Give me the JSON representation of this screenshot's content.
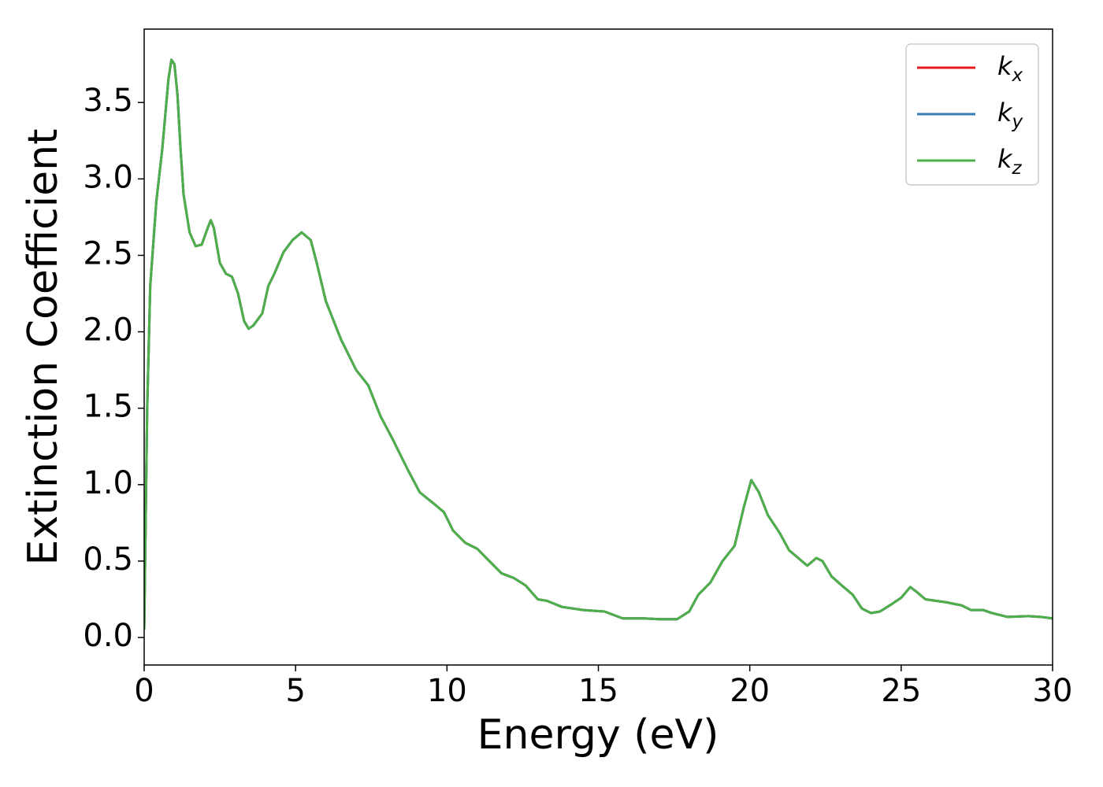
{
  "chart_data": {
    "type": "line",
    "xlabel": "Energy (eV)",
    "ylabel": "Extinction Coefficient",
    "x": [
      0,
      0.1,
      0.2,
      0.4,
      0.6,
      0.8,
      0.9,
      1.0,
      1.1,
      1.2,
      1.3,
      1.5,
      1.7,
      1.9,
      2.1,
      2.2,
      2.3,
      2.5,
      2.7,
      2.9,
      3.1,
      3.3,
      3.45,
      3.6,
      3.9,
      4.1,
      4.3,
      4.6,
      4.9,
      5.2,
      5.5,
      5.7,
      6.0,
      6.5,
      7.0,
      7.4,
      7.8,
      8.2,
      8.7,
      9.1,
      9.6,
      9.9,
      10.2,
      10.6,
      11.0,
      11.4,
      11.8,
      12.2,
      12.6,
      13.0,
      13.3,
      13.8,
      14.5,
      15.2,
      15.8,
      16.5,
      17.0,
      17.6,
      18.0,
      18.3,
      18.7,
      19.1,
      19.5,
      19.8,
      20.05,
      20.3,
      20.6,
      21.0,
      21.3,
      21.6,
      21.9,
      22.2,
      22.4,
      22.7,
      23.1,
      23.4,
      23.7,
      24.0,
      24.3,
      24.7,
      25.0,
      25.3,
      25.5,
      25.8,
      26.5,
      27.0,
      27.3,
      27.7,
      28.0,
      28.5,
      29.2,
      29.6,
      30.0
    ],
    "series": [
      {
        "name": "kx",
        "color": "#e41a1c",
        "values": [
          0.05,
          1.5,
          2.3,
          2.85,
          3.2,
          3.65,
          3.78,
          3.75,
          3.55,
          3.2,
          2.9,
          2.65,
          2.56,
          2.57,
          2.68,
          2.73,
          2.68,
          2.45,
          2.38,
          2.36,
          2.25,
          2.07,
          2.02,
          2.04,
          2.12,
          2.3,
          2.38,
          2.52,
          2.6,
          2.65,
          2.6,
          2.45,
          2.2,
          1.95,
          1.75,
          1.65,
          1.45,
          1.3,
          1.1,
          0.95,
          0.87,
          0.82,
          0.7,
          0.62,
          0.58,
          0.5,
          0.42,
          0.39,
          0.34,
          0.25,
          0.24,
          0.2,
          0.18,
          0.17,
          0.125,
          0.125,
          0.12,
          0.12,
          0.17,
          0.28,
          0.36,
          0.5,
          0.6,
          0.85,
          1.03,
          0.95,
          0.8,
          0.68,
          0.57,
          0.52,
          0.47,
          0.52,
          0.5,
          0.4,
          0.33,
          0.28,
          0.19,
          0.16,
          0.17,
          0.22,
          0.26,
          0.33,
          0.3,
          0.25,
          0.23,
          0.21,
          0.18,
          0.18,
          0.16,
          0.135,
          0.14,
          0.135,
          0.125
        ]
      },
      {
        "name": "ky",
        "color": "#377eb8",
        "values": [
          0.05,
          1.5,
          2.3,
          2.85,
          3.2,
          3.65,
          3.78,
          3.75,
          3.55,
          3.2,
          2.9,
          2.65,
          2.56,
          2.57,
          2.68,
          2.73,
          2.68,
          2.45,
          2.38,
          2.36,
          2.25,
          2.07,
          2.02,
          2.04,
          2.12,
          2.3,
          2.38,
          2.52,
          2.6,
          2.65,
          2.6,
          2.45,
          2.2,
          1.95,
          1.75,
          1.65,
          1.45,
          1.3,
          1.1,
          0.95,
          0.87,
          0.82,
          0.7,
          0.62,
          0.58,
          0.5,
          0.42,
          0.39,
          0.34,
          0.25,
          0.24,
          0.2,
          0.18,
          0.17,
          0.125,
          0.125,
          0.12,
          0.12,
          0.17,
          0.28,
          0.36,
          0.5,
          0.6,
          0.85,
          1.03,
          0.95,
          0.8,
          0.68,
          0.57,
          0.52,
          0.47,
          0.52,
          0.5,
          0.4,
          0.33,
          0.28,
          0.19,
          0.16,
          0.17,
          0.22,
          0.26,
          0.33,
          0.3,
          0.25,
          0.23,
          0.21,
          0.18,
          0.18,
          0.16,
          0.135,
          0.14,
          0.135,
          0.125
        ]
      },
      {
        "name": "kz",
        "color": "#4daf4a",
        "values": [
          0.05,
          1.5,
          2.3,
          2.85,
          3.2,
          3.65,
          3.78,
          3.75,
          3.55,
          3.2,
          2.9,
          2.65,
          2.56,
          2.57,
          2.68,
          2.73,
          2.68,
          2.45,
          2.38,
          2.36,
          2.25,
          2.07,
          2.02,
          2.04,
          2.12,
          2.3,
          2.38,
          2.52,
          2.6,
          2.65,
          2.6,
          2.45,
          2.2,
          1.95,
          1.75,
          1.65,
          1.45,
          1.3,
          1.1,
          0.95,
          0.87,
          0.82,
          0.7,
          0.62,
          0.58,
          0.5,
          0.42,
          0.39,
          0.34,
          0.25,
          0.24,
          0.2,
          0.18,
          0.17,
          0.125,
          0.125,
          0.12,
          0.12,
          0.17,
          0.28,
          0.36,
          0.5,
          0.6,
          0.85,
          1.03,
          0.95,
          0.8,
          0.68,
          0.57,
          0.52,
          0.47,
          0.52,
          0.5,
          0.4,
          0.33,
          0.28,
          0.19,
          0.16,
          0.17,
          0.22,
          0.26,
          0.33,
          0.3,
          0.25,
          0.23,
          0.21,
          0.18,
          0.18,
          0.16,
          0.135,
          0.14,
          0.135,
          0.125
        ]
      }
    ],
    "xlim": [
      0,
      30
    ],
    "xticks": [
      0,
      5,
      10,
      15,
      20,
      25,
      30
    ],
    "ylim": [
      -0.18,
      3.98
    ],
    "yticks": [
      {
        "value": 0,
        "label": "0.0"
      },
      0.5,
      {
        "value": 1,
        "label": "1.0"
      },
      1.5,
      {
        "value": 2,
        "label": "2.0"
      },
      2.5,
      {
        "value": 3,
        "label": "3.0"
      },
      3.5
    ],
    "grid": false,
    "legend": "upper right"
  }
}
